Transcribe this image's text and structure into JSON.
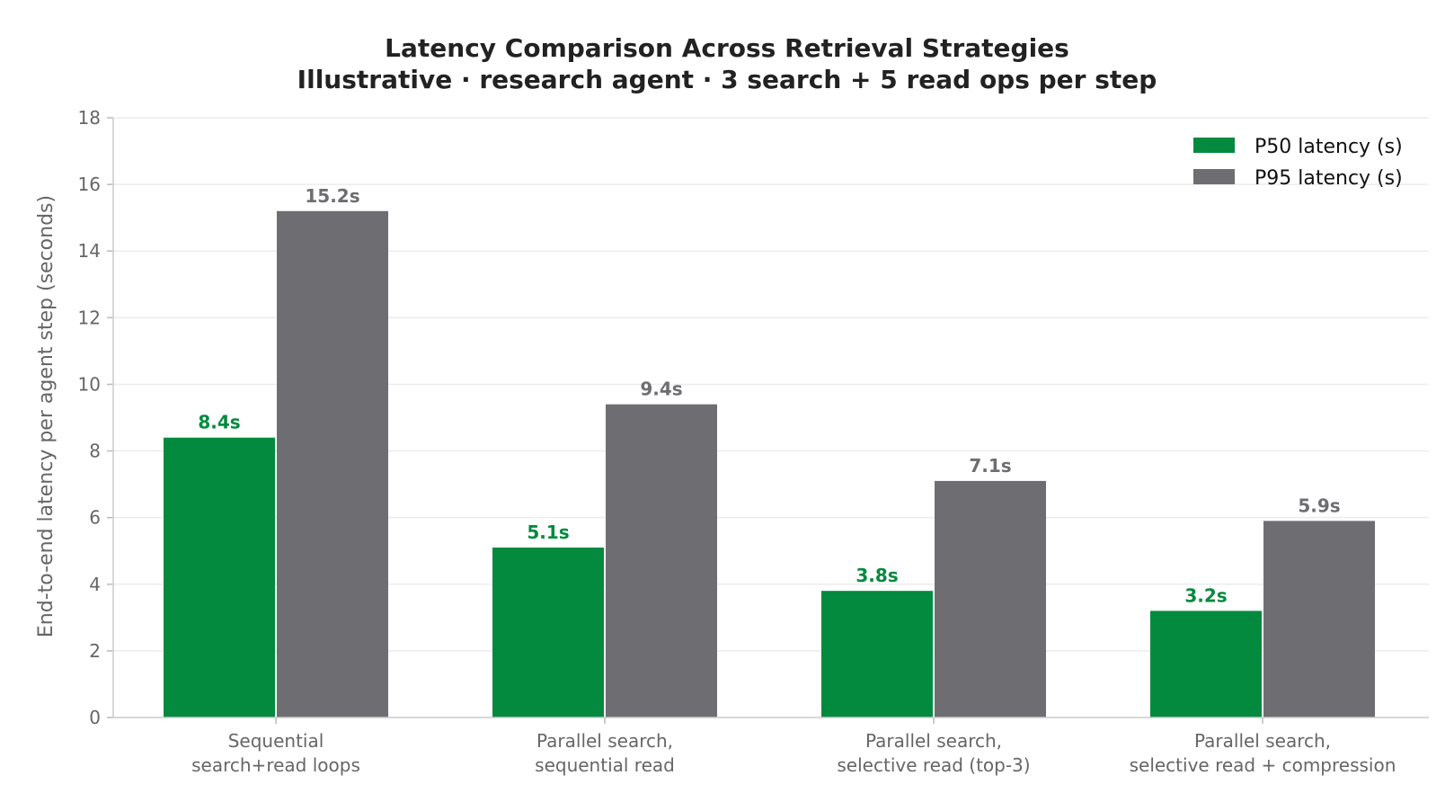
{
  "chart_data": {
    "type": "bar",
    "title": "Latency Comparison Across Retrieval Strategies",
    "subtitle": "Illustrative · research agent · 3 search + 5 read ops per step",
    "xlabel": "",
    "ylabel": "End-to-end latency per agent step (seconds)",
    "ylim": [
      0,
      18
    ],
    "yticks": [
      0,
      2,
      4,
      6,
      8,
      10,
      12,
      14,
      16,
      18
    ],
    "grid": true,
    "legend_position": "top-right",
    "categories": [
      [
        "Sequential",
        "search+read loops"
      ],
      [
        "Parallel search,",
        "sequential read"
      ],
      [
        "Parallel search,",
        "selective read (top-3)"
      ],
      [
        "Parallel search,",
        "selective read + compression"
      ]
    ],
    "series": [
      {
        "name": "P50 latency (s)",
        "color": "#038a3e",
        "values": [
          8.4,
          5.1,
          3.8,
          3.2
        ],
        "labels": [
          "8.4s",
          "5.1s",
          "3.8s",
          "3.2s"
        ]
      },
      {
        "name": "P95 latency (s)",
        "color": "#6e6e72",
        "values": [
          15.2,
          9.4,
          7.1,
          5.9
        ],
        "labels": [
          "15.2s",
          "9.4s",
          "7.1s",
          "5.9s"
        ]
      }
    ]
  }
}
